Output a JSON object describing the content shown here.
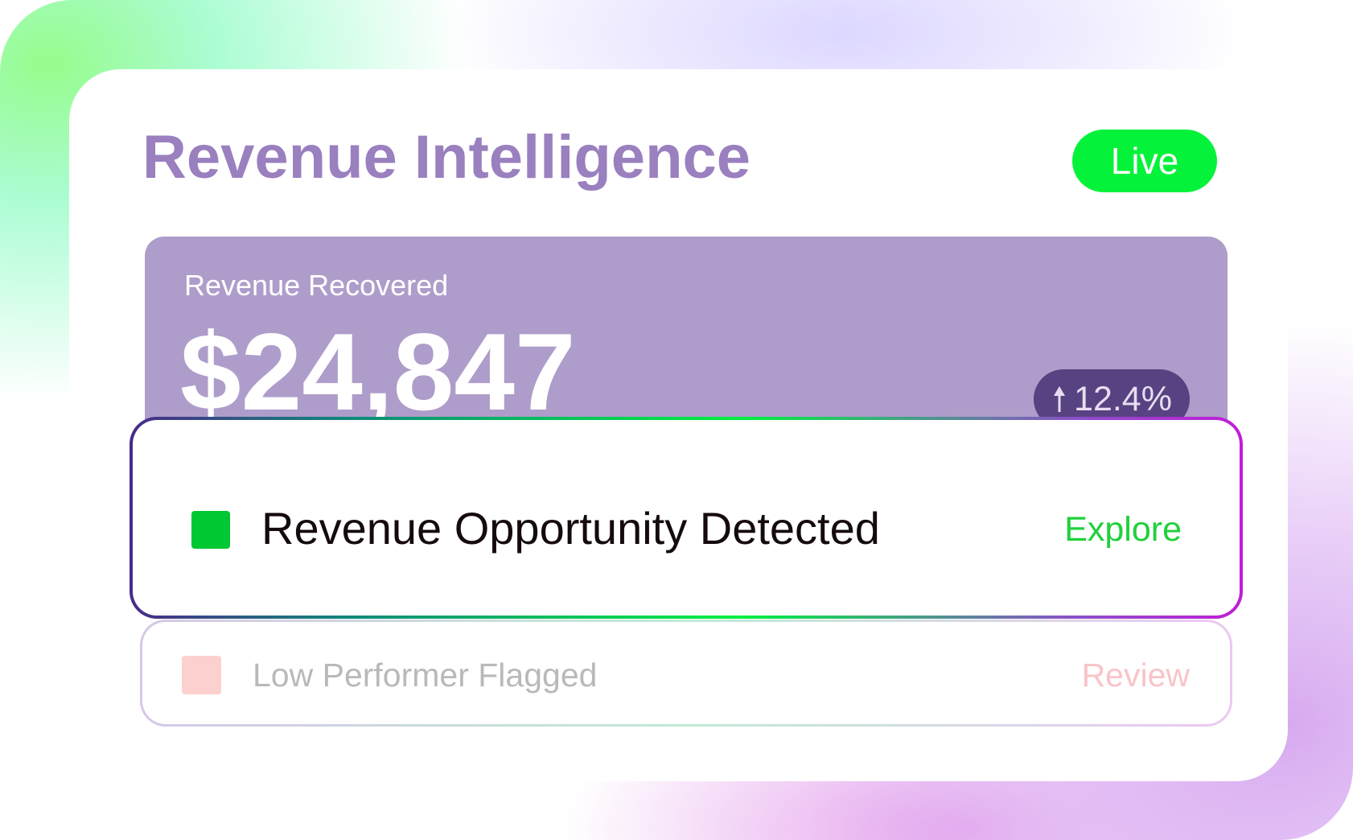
{
  "header": {
    "title": "Revenue Intelligence",
    "status_label": "Live"
  },
  "metric": {
    "label": "Revenue Recovered",
    "value": "$24,847",
    "change": "12.4%",
    "change_icon": "arrow-up-icon"
  },
  "alerts": [
    {
      "title": "Revenue Opportunity Detected",
      "action": "Explore",
      "color": "#00c832"
    },
    {
      "title": "Low Performer Flagged",
      "action": "Review",
      "color": "#fdd0d0"
    }
  ],
  "colors": {
    "accent": "#9a80bf",
    "live": "#05f23a",
    "panel": "#ae9dca",
    "badge": "#574282"
  }
}
